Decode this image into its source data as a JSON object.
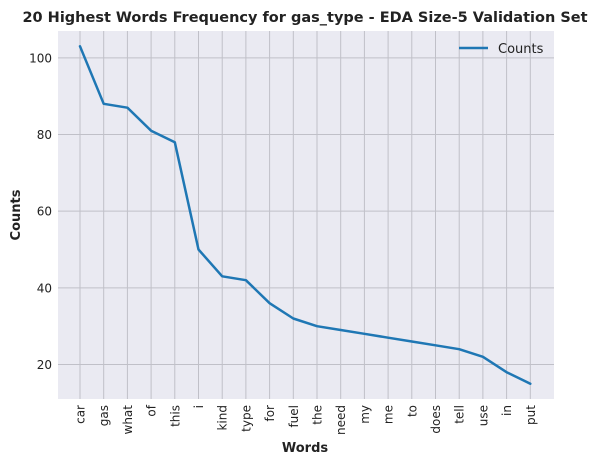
{
  "chart_data": {
    "type": "line",
    "title": "20 Highest Words Frequency for gas_type - EDA Size-5 Validation Set",
    "xlabel": "Words",
    "ylabel": "Counts",
    "categories": [
      "car",
      "gas",
      "what",
      "of",
      "this",
      "i",
      "kind",
      "type",
      "for",
      "fuel",
      "the",
      "need",
      "my",
      "me",
      "to",
      "does",
      "tell",
      "use",
      "in",
      "put"
    ],
    "series": [
      {
        "name": "Counts",
        "values": [
          103,
          88,
          87,
          81,
          78,
          50,
          43,
          42,
          36,
          32,
          30,
          29,
          28,
          27,
          26,
          25,
          24,
          22,
          18,
          15
        ],
        "color": "#1f77b4"
      }
    ],
    "ylim": [
      11,
      107
    ],
    "yticks": [
      20,
      40,
      60,
      80,
      100
    ],
    "grid": true,
    "legend_position": "top-right",
    "background_color": "#eaeaf2",
    "grid_color": "#c0c0c8"
  }
}
